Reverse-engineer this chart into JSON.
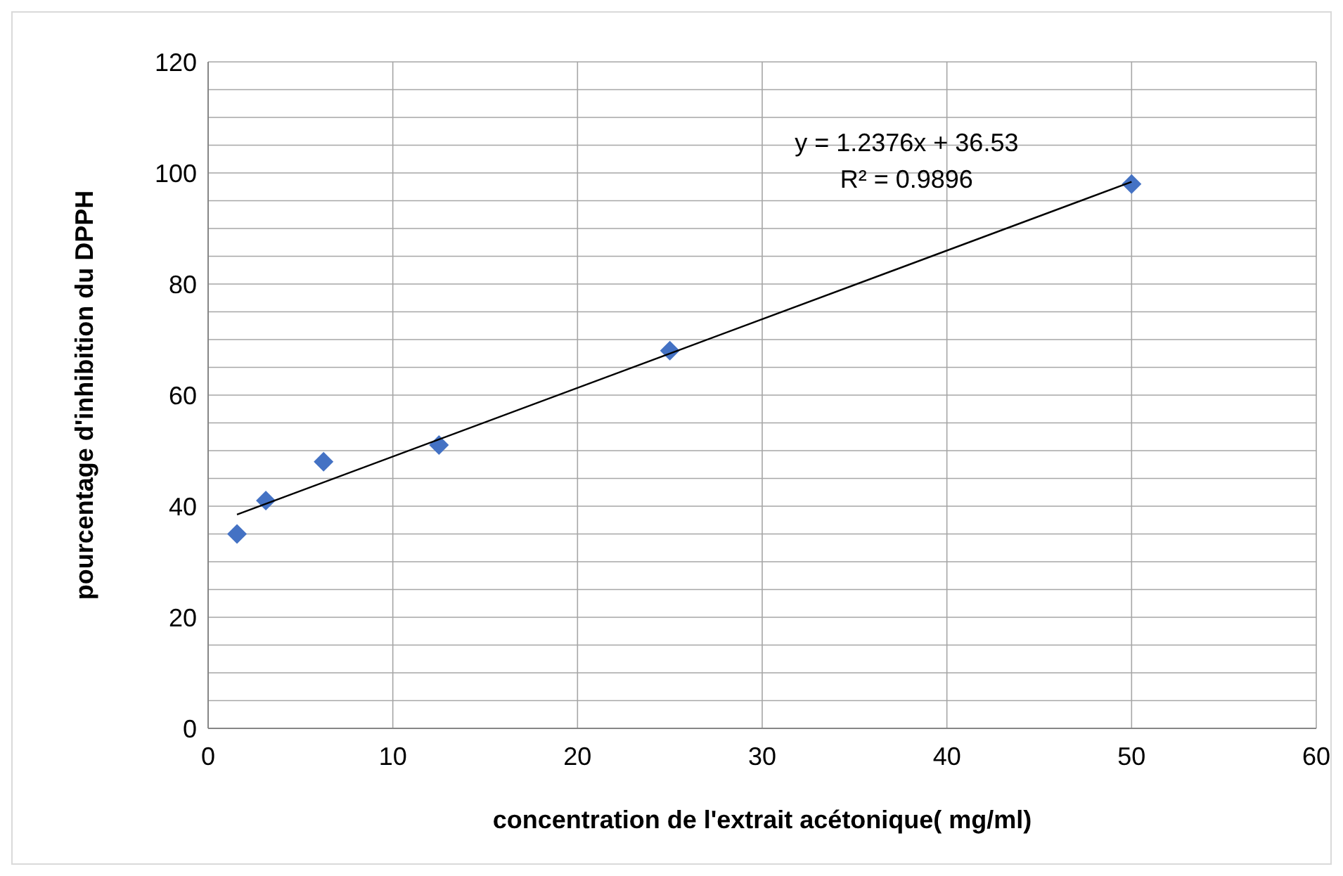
{
  "chart_data": {
    "type": "scatter",
    "xlabel": "concentration de l'extrait  acétonique( mg/ml)",
    "ylabel": "pourcentage d'inhibition du DPPH",
    "series": [
      {
        "color": "#4472c4",
        "marker": "diamond",
        "x": [
          1.5625,
          3.125,
          6.25,
          12.5,
          25,
          50
        ],
        "values": [
          35,
          41,
          48,
          51,
          68,
          98
        ]
      },
      {
        "type": "line",
        "color": "#000000",
        "marker": "none",
        "x": [
          1.5625,
          50
        ],
        "values": [
          38.5,
          98.4
        ]
      }
    ],
    "xlim": [
      0,
      60
    ],
    "xticks": [
      0,
      10,
      20,
      30,
      40,
      50,
      60
    ],
    "ylim": [
      0,
      120
    ],
    "yticks": [
      0,
      {
        "value": 5,
        "label": null
      },
      {
        "value": 10,
        "label": null
      },
      {
        "value": 15,
        "label": null
      },
      20,
      {
        "value": 25,
        "label": null
      },
      {
        "value": 30,
        "label": null
      },
      {
        "value": 35,
        "label": null
      },
      40,
      {
        "value": 45,
        "label": null
      },
      {
        "value": 50,
        "label": null
      },
      {
        "value": 55,
        "label": null
      },
      60,
      {
        "value": 65,
        "label": null
      },
      {
        "value": 70,
        "label": null
      },
      {
        "value": 75,
        "label": null
      },
      80,
      {
        "value": 85,
        "label": null
      },
      {
        "value": 90,
        "label": null
      },
      {
        "value": 95,
        "label": null
      },
      100,
      {
        "value": 105,
        "label": null
      },
      {
        "value": 110,
        "label": null
      },
      {
        "value": 115,
        "label": null
      },
      120
    ],
    "grid": true,
    "annotations": [
      "y = 1.2376x + 36.53",
      "R² = 0.9896"
    ]
  }
}
